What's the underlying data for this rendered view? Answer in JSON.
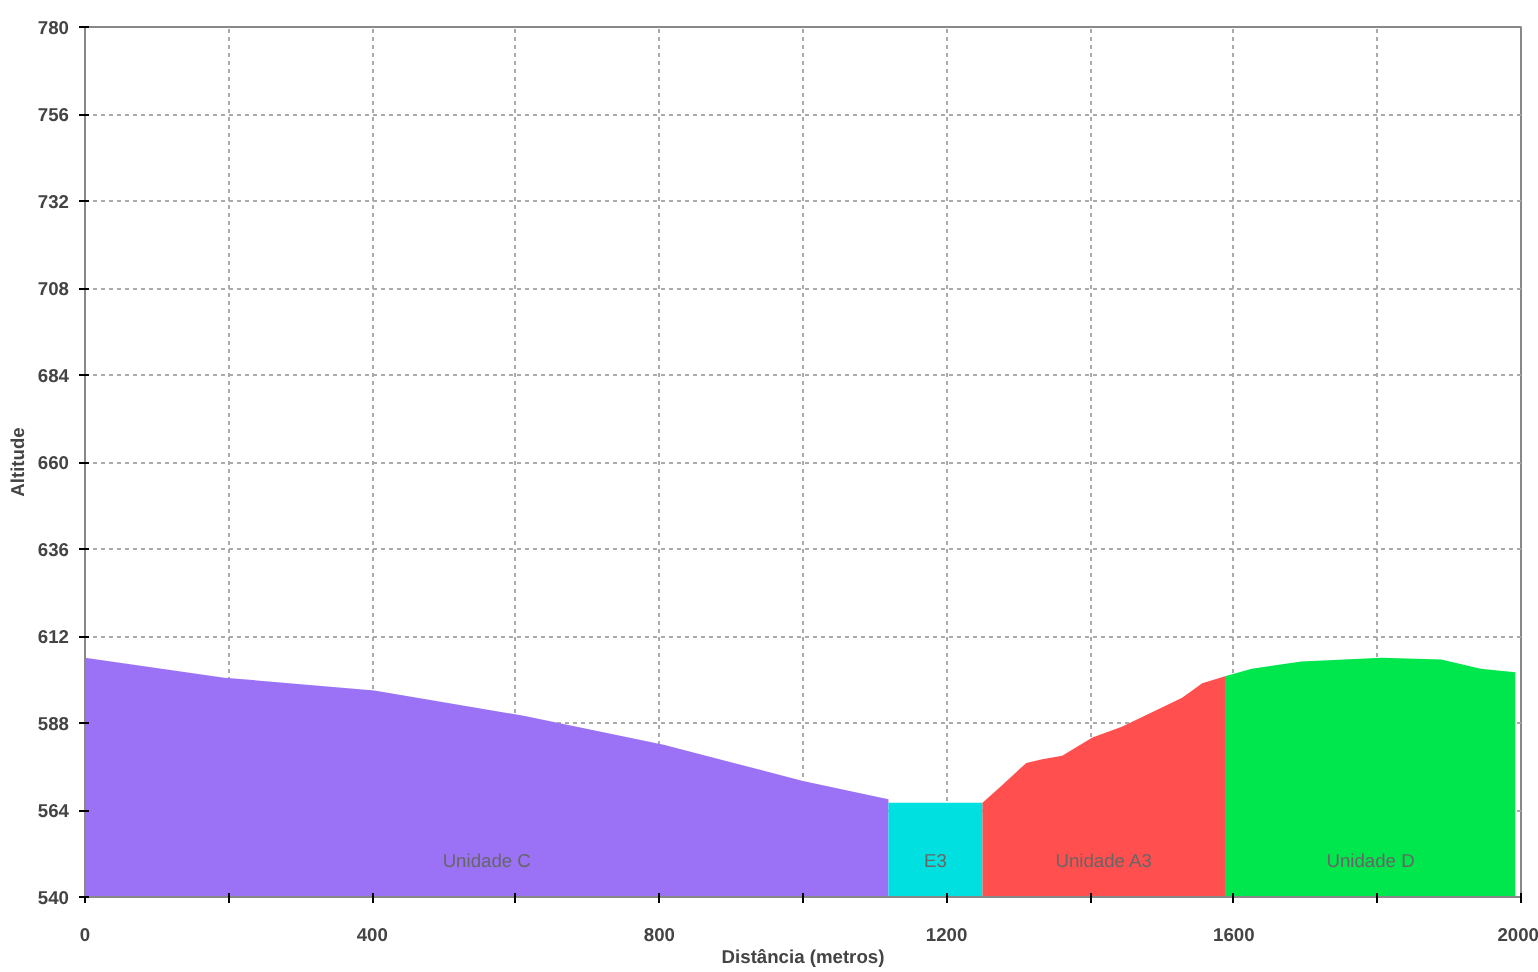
{
  "chart_data": {
    "type": "area",
    "xlabel": "Distância (metros)",
    "ylabel": "Altitude",
    "xlim": [
      0,
      2000
    ],
    "ylim": [
      540,
      780
    ],
    "xticks": [
      0,
      {
        "value": 200,
        "label": null
      },
      400,
      {
        "value": 600,
        "label": null
      },
      800,
      {
        "value": 1000,
        "label": null
      },
      1200,
      {
        "value": 1400,
        "label": null
      },
      1600,
      {
        "value": 1800,
        "label": null
      },
      2000
    ],
    "yticks": [
      540,
      564,
      588,
      612,
      636,
      660,
      684,
      708,
      732,
      756,
      780
    ],
    "grid": true,
    "series": [
      {
        "name": "Unidade C",
        "color": "#9b72f5",
        "x": [
          0,
          194,
          403,
          611,
          806,
          1000,
          1119
        ],
        "values": [
          606,
          600.5,
          597,
          590,
          582,
          572,
          567
        ]
      },
      {
        "name": "E3",
        "color": "#00e0e0",
        "x": [
          1119,
          1250
        ],
        "values": [
          566,
          566
        ]
      },
      {
        "name": "Unidade A3",
        "color": "#ff4f4f",
        "x": [
          1250,
          1278,
          1311,
          1333,
          1361,
          1403,
          1444,
          1486,
          1528,
          1556,
          1589
        ],
        "values": [
          566,
          571,
          577,
          578,
          579,
          584,
          587,
          591,
          595,
          599,
          601
        ]
      },
      {
        "name": "Unidade D",
        "color": "#00e64d",
        "x": [
          1589,
          1625,
          1694,
          1806,
          1889,
          1944,
          1992
        ],
        "values": [
          601,
          603,
          605,
          606,
          605.5,
          603,
          602
        ]
      }
    ]
  }
}
